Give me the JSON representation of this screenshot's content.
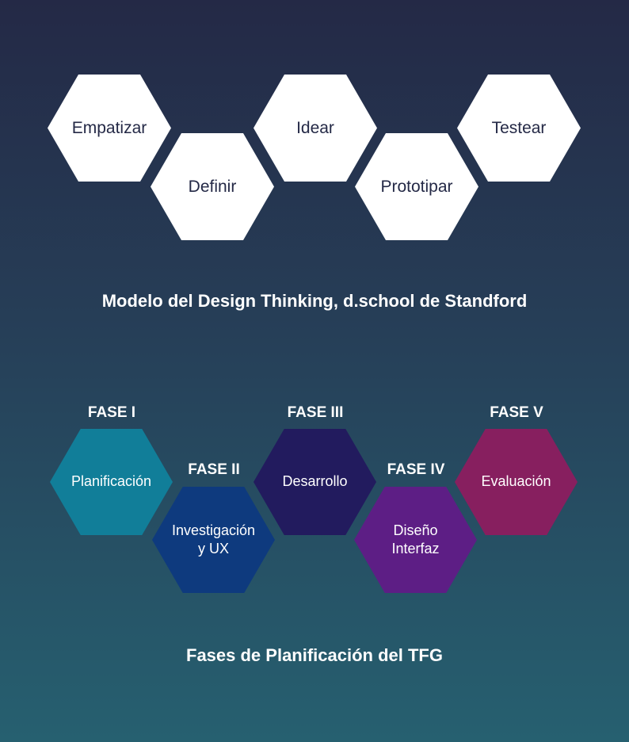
{
  "design_thinking": {
    "steps": [
      "Empatizar",
      "Definir",
      "Idear",
      "Prototipar",
      "Testear"
    ],
    "caption": "Modelo del Design Thinking, d.school de Standford",
    "hex_color": "#ffffff",
    "text_color": "#242946"
  },
  "tfg_phases": {
    "phases": [
      {
        "phase": "FASE I",
        "label": "Planificación",
        "color": "#117e99"
      },
      {
        "phase": "FASE II",
        "label": "Investigación\ny UX",
        "color": "#0e3a7e"
      },
      {
        "phase": "FASE III",
        "label": "Desarrollo",
        "color": "#221b5e"
      },
      {
        "phase": "FASE IV",
        "label": "Diseño\nInterfaz",
        "color": "#5d1e85"
      },
      {
        "phase": "FASE V",
        "label": "Evaluación",
        "color": "#871f5f"
      }
    ],
    "caption": "Fases de Planificación del TFG"
  }
}
